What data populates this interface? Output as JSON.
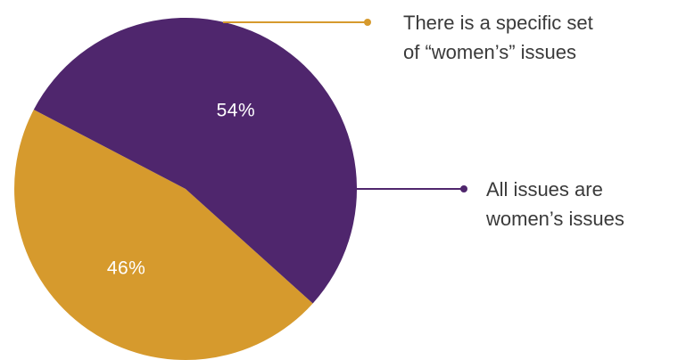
{
  "chart_data": {
    "type": "pie",
    "slices": [
      {
        "label_lines": [
          "There is a specific set",
          "of “women’s” issues"
        ],
        "value": 46,
        "value_label": "46%",
        "color": "#d69a2d"
      },
      {
        "label_lines": [
          "All issues are",
          "women’s issues"
        ],
        "value": 54,
        "value_label": "54%",
        "color": "#4f266d"
      }
    ]
  }
}
